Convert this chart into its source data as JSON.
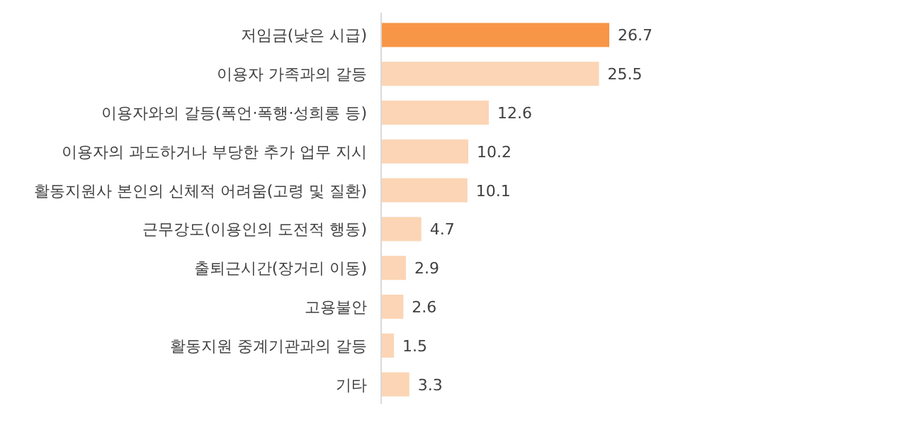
{
  "chart_data": {
    "type": "bar",
    "orientation": "horizontal",
    "categories": [
      "저임금(낮은 시급)",
      "이용자 가족과의 갈등",
      "이용자와의 갈등(폭언·폭행·성희롱 등)",
      "이용자의 과도하거나 부당한 추가 업무 지시",
      "활동지원사 본인의 신체적 어려움(고령 및 질환)",
      "근무강도(이용인의 도전적 행동)",
      "출퇴근시간(장거리 이동)",
      "고용불안",
      "활동지원 중계기관과의 갈등",
      "기타"
    ],
    "values": [
      26.7,
      25.5,
      12.6,
      10.2,
      10.1,
      4.7,
      2.9,
      2.6,
      1.5,
      3.3
    ],
    "colors": [
      "#f79646",
      "#fbd5b5",
      "#fbd5b5",
      "#fbd5b5",
      "#fbd5b5",
      "#fbd5b5",
      "#fbd5b5",
      "#fbd5b5",
      "#fbd5b5",
      "#fbd5b5"
    ],
    "data_labels": true
  }
}
